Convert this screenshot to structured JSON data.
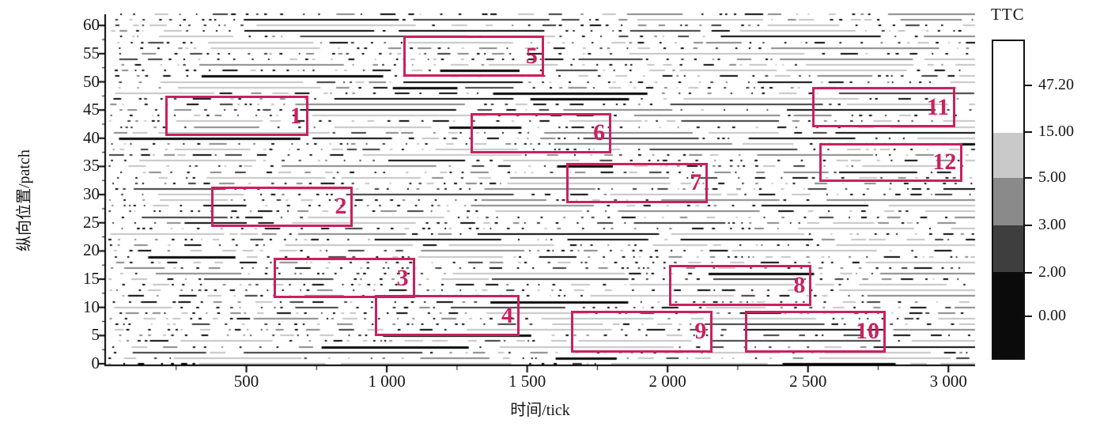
{
  "chart_data": {
    "type": "scatter",
    "xlabel": "时间/tick",
    "ylabel": "纵向位置/patch",
    "xlim": [
      0,
      3095
    ],
    "ylim": [
      0,
      62
    ],
    "grid": false,
    "x_ticks": {
      "values": [
        500,
        1000,
        1500,
        2000,
        2500,
        3000
      ],
      "labels": [
        "500",
        "1 000",
        "1 500",
        "2 000",
        "2 500",
        "3 000"
      ],
      "minor_every": 250
    },
    "y_ticks": {
      "values": [
        0,
        5,
        10,
        15,
        20,
        25,
        30,
        35,
        40,
        45,
        50,
        55,
        60
      ],
      "labels": [
        "0",
        "5",
        "10",
        "15",
        "20",
        "25",
        "30",
        "35",
        "40",
        "45",
        "50",
        "55",
        "60"
      ],
      "minor_every": 2.5
    },
    "colorbar": {
      "title": "TTC",
      "position": "right",
      "tick_labels": [
        "47.20",
        "15.00",
        "5.00",
        "3.00",
        "2.00",
        "0.00"
      ],
      "tick_positions": [
        0.143,
        0.289,
        0.432,
        0.58,
        0.728,
        0.864
      ],
      "segments": [
        {
          "color": "#ffffff",
          "from": 0.0,
          "to": 0.289
        },
        {
          "color": "#c9c9c9",
          "from": 0.289,
          "to": 0.432
        },
        {
          "color": "#8a8a8a",
          "from": 0.432,
          "to": 0.58
        },
        {
          "color": "#3e3e3e",
          "from": 0.58,
          "to": 0.728
        },
        {
          "color": "#0b0b0b",
          "from": 0.728,
          "to": 1.0
        }
      ]
    },
    "annotation_color": "#cb2060",
    "annotations": [
      {
        "label": "1",
        "x": [
          210,
          720
        ],
        "y": [
          40.4,
          47.5
        ]
      },
      {
        "label": "2",
        "x": [
          375,
          880
        ],
        "y": [
          24.3,
          31.4
        ]
      },
      {
        "label": "3",
        "x": [
          597,
          1100
        ],
        "y": [
          11.6,
          18.8
        ]
      },
      {
        "label": "4",
        "x": [
          958,
          1473
        ],
        "y": [
          4.9,
          12.2
        ]
      },
      {
        "label": "5",
        "x": [
          1059,
          1560
        ],
        "y": [
          50.9,
          58.2
        ]
      },
      {
        "label": "6",
        "x": [
          1299,
          1800
        ],
        "y": [
          37.3,
          44.5
        ]
      },
      {
        "label": "7",
        "x": [
          1640,
          2144
        ],
        "y": [
          28.5,
          35.6
        ]
      },
      {
        "label": "8",
        "x": [
          2006,
          2513
        ],
        "y": [
          10.2,
          17.5
        ]
      },
      {
        "label": "9",
        "x": [
          1656,
          2161
        ],
        "y": [
          2.0,
          9.4
        ]
      },
      {
        "label": "10",
        "x": [
          2276,
          2777
        ],
        "y": [
          2.0,
          9.4
        ]
      },
      {
        "label": "11",
        "x": [
          2515,
          3025
        ],
        "y": [
          41.9,
          49.1
        ]
      },
      {
        "label": "12",
        "x": [
          2541,
          3051
        ],
        "y": [
          32.3,
          39.1
        ]
      }
    ],
    "point_colors": [
      "#0a0a0a",
      "#3d3d3d",
      "#8a8a8a",
      "#c5c5c5"
    ],
    "scatter_field": {
      "seed": 7,
      "rows": 63
    }
  }
}
